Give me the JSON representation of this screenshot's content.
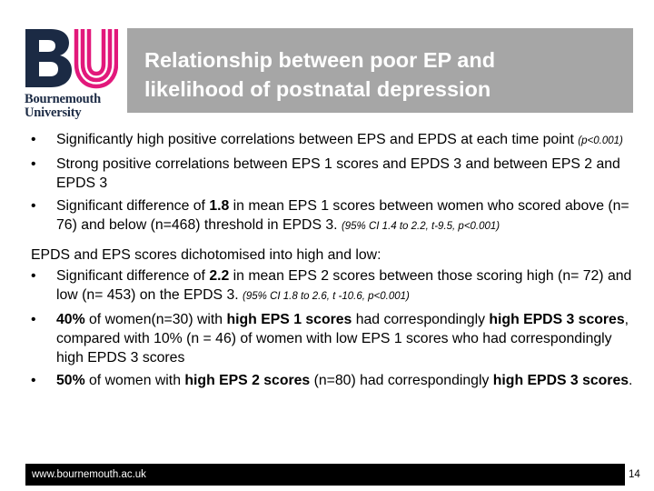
{
  "logo": {
    "line1": "Bournemouth",
    "line2": "University"
  },
  "title": {
    "line1": "Relationship between poor EP and",
    "line2": "likelihood of postnatal depression"
  },
  "bullets_top": [
    {
      "parts": [
        {
          "t": "Significantly high positive correlations between EPS and EPDS at each time point "
        },
        {
          "t": "(p<0.001)",
          "s": "small"
        }
      ]
    },
    {
      "parts": [
        {
          "t": "Strong positive correlations between EPS 1 scores and EPDS 3 and between EPS 2 and EPDS 3"
        }
      ]
    },
    {
      "parts": [
        {
          "t": "Significant difference of "
        },
        {
          "t": "1.8",
          "s": "bold"
        },
        {
          "t": " in mean EPS 1 scores between women who scored above (n= 76) and below (n=468) threshold in EPDS 3. "
        },
        {
          "t": "(95% CI 1.4 to 2.2, t-9.5, p<0.001)",
          "s": "small"
        }
      ]
    }
  ],
  "section_label": "EPDS and EPS  scores dichotomised into high and low:",
  "bullets_bottom": [
    {
      "parts": [
        {
          "t": "Significant difference of "
        },
        {
          "t": "2.2",
          "s": "bold"
        },
        {
          "t": " in mean EPS 2 scores between those scoring high (n= 72) and low (n= 453) on the EPDS 3. "
        },
        {
          "t": "(95% CI 1.8 to 2.6, t -10.6, p<0.001)",
          "s": "small"
        }
      ]
    },
    {
      "parts": [
        {
          "t": "40%",
          "s": "bold"
        },
        {
          "t": " of women(n=30) with "
        },
        {
          "t": "high EPS 1 scores",
          "s": "bold"
        },
        {
          "t": " had correspondingly "
        },
        {
          "t": "high EPDS 3 scores",
          "s": "bold"
        },
        {
          "t": ", compared with 10% (n = 46) of women with low EPS 1 scores who had correspondingly high EPDS 3 scores"
        }
      ]
    },
    {
      "parts": [
        {
          "t": "50%",
          "s": "bold"
        },
        {
          "t": " of women with "
        },
        {
          "t": "high EPS 2 scores",
          "s": "bold"
        },
        {
          "t": " (n=80) had correspondingly "
        },
        {
          "t": "high EPDS 3 scores",
          "s": "bold"
        },
        {
          "t": "."
        }
      ]
    }
  ],
  "bullet_glyph": "•",
  "footer": {
    "url": "www.bournemouth.ac.uk",
    "page": "14"
  }
}
